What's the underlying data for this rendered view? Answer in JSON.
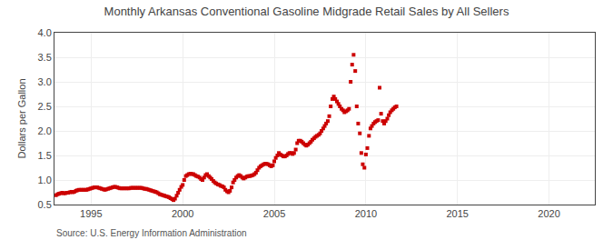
{
  "chart_data": {
    "type": "scatter",
    "title": "Monthly Arkansas Conventional Gasoline Midgrade Retail Sales by All Sellers",
    "y_label": "Dollars per Gallon",
    "annotations": [
      "Source: U.S. Energy Information Administration"
    ],
    "color": "#cc0000",
    "marker": "square",
    "grid": true,
    "xlim": [
      1993.0,
      2022.5
    ],
    "xticks": [
      1995,
      2000,
      2005,
      2010,
      2015,
      2020
    ],
    "ylim": [
      0.5,
      4.0
    ],
    "yticks": [
      0.5,
      {
        "value": 1.0,
        "label": "1.0"
      },
      1.5,
      {
        "value": 2.0,
        "label": "2.0"
      },
      2.5,
      {
        "value": 3.0,
        "label": "3.0"
      },
      3.5,
      {
        "value": 4.0,
        "label": "4.0"
      }
    ],
    "x": [
      1993.08,
      1993.17,
      1993.25,
      1993.33,
      1993.42,
      1993.5,
      1993.58,
      1993.67,
      1993.75,
      1993.83,
      1993.92,
      1994.0,
      1994.08,
      1994.17,
      1994.25,
      1994.33,
      1994.42,
      1994.5,
      1994.58,
      1994.67,
      1994.75,
      1994.83,
      1994.92,
      1995.0,
      1995.08,
      1995.17,
      1995.25,
      1995.33,
      1995.42,
      1995.5,
      1995.58,
      1995.67,
      1995.75,
      1995.83,
      1995.92,
      1996.0,
      1996.08,
      1996.17,
      1996.25,
      1996.33,
      1996.42,
      1996.5,
      1996.58,
      1996.67,
      1996.75,
      1996.83,
      1996.92,
      1997.0,
      1997.08,
      1997.17,
      1997.25,
      1997.33,
      1997.42,
      1997.5,
      1997.58,
      1997.67,
      1997.75,
      1997.83,
      1997.92,
      1998.0,
      1998.08,
      1998.17,
      1998.25,
      1998.33,
      1998.42,
      1998.5,
      1998.58,
      1998.67,
      1998.75,
      1998.83,
      1998.92,
      1999.0,
      1999.08,
      1999.17,
      1999.25,
      1999.33,
      1999.42,
      1999.5,
      1999.58,
      1999.67,
      1999.75,
      1999.83,
      1999.92,
      2000.0,
      2000.08,
      2000.17,
      2000.25,
      2000.33,
      2000.42,
      2000.5,
      2000.58,
      2000.67,
      2000.75,
      2000.83,
      2000.92,
      2001.0,
      2001.08,
      2001.17,
      2001.25,
      2001.33,
      2001.42,
      2001.5,
      2001.58,
      2001.67,
      2001.75,
      2001.83,
      2001.92,
      2002.0,
      2002.08,
      2002.17,
      2002.25,
      2002.33,
      2002.42,
      2002.5,
      2002.58,
      2002.67,
      2002.75,
      2002.83,
      2002.92,
      2003.0,
      2003.08,
      2003.17,
      2003.25,
      2003.33,
      2003.42,
      2003.5,
      2003.58,
      2003.67,
      2003.75,
      2003.83,
      2003.92,
      2004.0,
      2004.08,
      2004.17,
      2004.25,
      2004.33,
      2004.42,
      2004.5,
      2004.58,
      2004.67,
      2004.75,
      2004.83,
      2004.92,
      2005.0,
      2005.08,
      2005.17,
      2005.25,
      2005.33,
      2005.42,
      2005.5,
      2005.58,
      2005.67,
      2005.75,
      2005.83,
      2005.92,
      2006.0,
      2006.08,
      2006.17,
      2006.25,
      2006.33,
      2006.42,
      2006.5,
      2006.58,
      2006.67,
      2006.75,
      2006.83,
      2006.92,
      2007.0,
      2007.08,
      2007.17,
      2007.25,
      2007.33,
      2007.42,
      2007.5,
      2007.58,
      2007.67,
      2007.75,
      2007.83,
      2007.92,
      2008.0,
      2008.08,
      2008.17,
      2008.25,
      2008.33,
      2008.42,
      2008.5,
      2008.58,
      2008.67,
      2008.75,
      2008.83,
      2008.92,
      2009.0,
      2009.08,
      2009.17,
      2009.25,
      2009.33,
      2009.42,
      2009.5,
      2009.58,
      2009.67,
      2009.75,
      2009.83,
      2009.92,
      2010.0,
      2010.08,
      2010.17,
      2010.25,
      2010.33,
      2010.42,
      2010.5,
      2010.58,
      2010.67,
      2010.75,
      2010.83,
      2010.92,
      2011.0,
      2011.08,
      2011.17,
      2011.25,
      2011.33,
      2011.42,
      2011.5,
      2011.58,
      2011.67
    ],
    "values": [
      0.69,
      0.71,
      0.72,
      0.73,
      0.74,
      0.73,
      0.73,
      0.74,
      0.74,
      0.75,
      0.76,
      0.75,
      0.76,
      0.78,
      0.79,
      0.8,
      0.8,
      0.8,
      0.8,
      0.8,
      0.8,
      0.81,
      0.82,
      0.83,
      0.84,
      0.85,
      0.85,
      0.85,
      0.84,
      0.83,
      0.82,
      0.81,
      0.8,
      0.81,
      0.82,
      0.83,
      0.84,
      0.85,
      0.86,
      0.86,
      0.85,
      0.84,
      0.83,
      0.83,
      0.83,
      0.83,
      0.83,
      0.83,
      0.83,
      0.84,
      0.84,
      0.84,
      0.84,
      0.84,
      0.84,
      0.84,
      0.84,
      0.83,
      0.82,
      0.82,
      0.81,
      0.8,
      0.79,
      0.78,
      0.77,
      0.76,
      0.75,
      0.73,
      0.71,
      0.7,
      0.69,
      0.68,
      0.67,
      0.66,
      0.65,
      0.63,
      0.61,
      0.59,
      0.62,
      0.68,
      0.74,
      0.8,
      0.86,
      0.9,
      1.0,
      1.08,
      1.1,
      1.12,
      1.13,
      1.12,
      1.12,
      1.1,
      1.08,
      1.07,
      1.05,
      1.02,
      1.0,
      1.05,
      1.1,
      1.12,
      1.08,
      1.05,
      1.02,
      0.98,
      0.95,
      0.93,
      0.91,
      0.9,
      0.88,
      0.87,
      0.85,
      0.8,
      0.77,
      0.75,
      0.78,
      0.85,
      0.95,
      1.0,
      1.05,
      1.08,
      1.1,
      1.08,
      1.05,
      1.03,
      1.05,
      1.07,
      1.08,
      1.08,
      1.09,
      1.1,
      1.12,
      1.15,
      1.2,
      1.25,
      1.28,
      1.3,
      1.32,
      1.33,
      1.33,
      1.32,
      1.3,
      1.28,
      1.3,
      1.38,
      1.45,
      1.5,
      1.55,
      1.52,
      1.5,
      1.48,
      1.48,
      1.5,
      1.53,
      1.55,
      1.55,
      1.53,
      1.55,
      1.62,
      1.75,
      1.8,
      1.8,
      1.78,
      1.75,
      1.72,
      1.7,
      1.72,
      1.75,
      1.78,
      1.82,
      1.85,
      1.88,
      1.9,
      1.92,
      1.95,
      2.0,
      2.05,
      2.1,
      2.15,
      2.2,
      2.3,
      2.5,
      2.65,
      2.7,
      2.65,
      2.6,
      2.55,
      2.5,
      2.45,
      2.42,
      2.38,
      2.4,
      2.42,
      2.45,
      3.0,
      3.35,
      3.55,
      3.22,
      2.5,
      2.15,
      1.95,
      1.55,
      1.32,
      1.25,
      1.52,
      1.65,
      1.9,
      2.05,
      2.1,
      2.15,
      2.18,
      2.2,
      2.22,
      2.88,
      2.35,
      2.2,
      2.15,
      2.2,
      2.25,
      2.32,
      2.38,
      2.42,
      2.45,
      2.48,
      2.5
    ]
  }
}
